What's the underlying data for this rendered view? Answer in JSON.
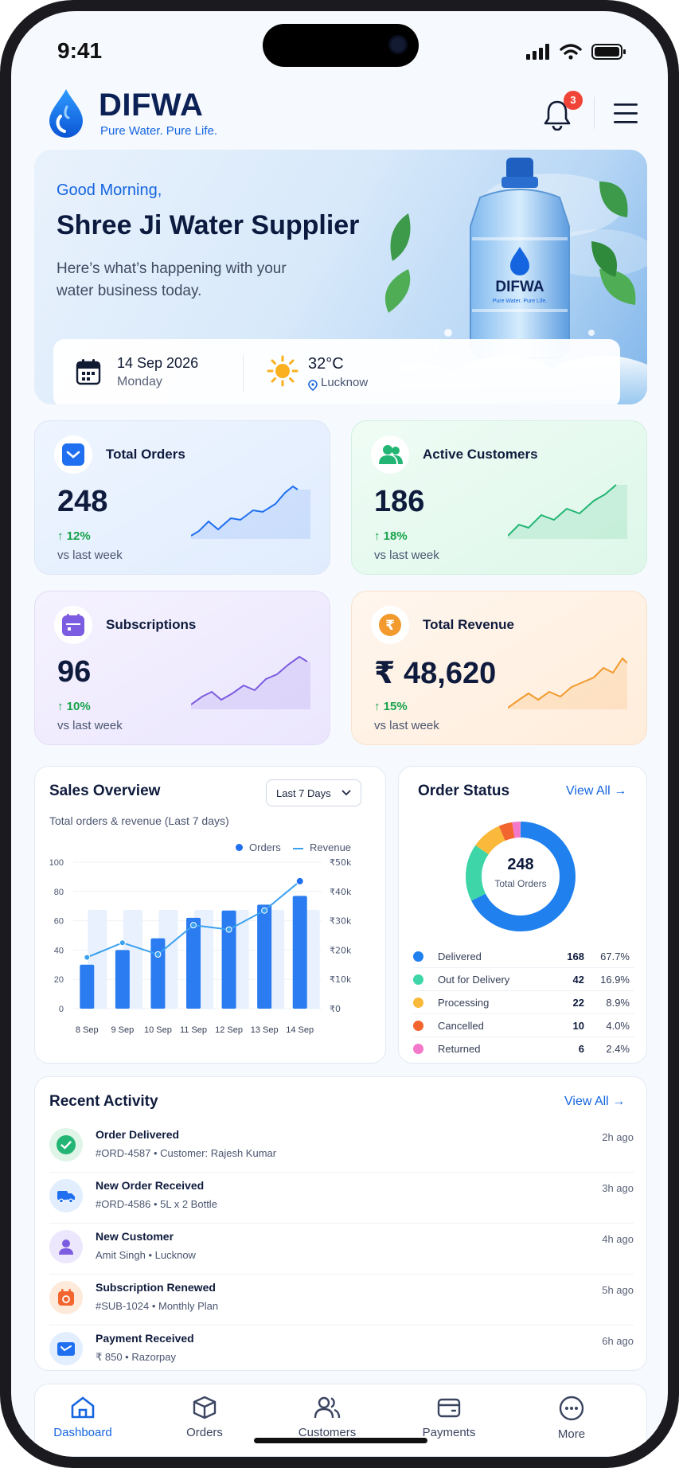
{
  "status_bar": {
    "time": "9:41"
  },
  "header": {
    "brand": "DIFWA",
    "tagline": "Pure Water. Pure Life.",
    "notification_count": "3"
  },
  "hero": {
    "greeting": "Good Morning,",
    "business_name": "Shree Ji Water Supplier",
    "subtitle": "Here’s what’s happening with your water business today.",
    "bottle_label": "DIFWA",
    "bottle_tagline": "Pure Water. Pure Life.",
    "date": "14 Sep 2026",
    "day": "Monday",
    "temperature": "32°C",
    "city": "Lucknow"
  },
  "stats": [
    {
      "title": "Total Orders",
      "value": "248",
      "change": "12%",
      "compare": "vs last week",
      "color": "#1565e0"
    },
    {
      "title": "Active Customers",
      "value": "186",
      "change": "18%",
      "compare": "vs last week",
      "color": "#22b573"
    },
    {
      "title": "Subscriptions",
      "value": "96",
      "change": "10%",
      "compare": "vs last week",
      "color": "#7c5ce0"
    },
    {
      "title": "Total Revenue",
      "value": "₹ 48,620",
      "change": "15%",
      "compare": "vs last week",
      "color": "#f29a2e"
    }
  ],
  "sales_overview": {
    "title": "Sales Overview",
    "subtitle": "Total orders & revenue (Last 7 days)",
    "range_label": "Last 7 Days",
    "legend_orders": "Orders",
    "legend_revenue": "Revenue"
  },
  "chart_data": {
    "type": "bar",
    "categories": [
      "8 Sep",
      "9 Sep",
      "10 Sep",
      "11 Sep",
      "12 Sep",
      "13 Sep",
      "14 Sep"
    ],
    "y_ticks": [
      "100",
      "80",
      "60",
      "40",
      "20",
      "0"
    ],
    "y2_ticks": [
      "₹50k",
      "₹40k",
      "₹30k",
      "₹20k",
      "₹10k",
      "₹0"
    ],
    "ylim": [
      0,
      100
    ],
    "y2lim": [
      0,
      50000
    ],
    "series": [
      {
        "name": "Orders",
        "type": "bar",
        "values": [
          30,
          40,
          48,
          62,
          67,
          71,
          77
        ]
      },
      {
        "name": "Revenue",
        "type": "line",
        "values": [
          17500,
          22500,
          18500,
          28500,
          27000,
          33500,
          43500
        ]
      }
    ],
    "grid": true,
    "legend_position": "top-right"
  },
  "order_status": {
    "title": "Order Status",
    "view_all": "View All",
    "total": "248",
    "total_label": "Total Orders",
    "items": [
      {
        "label": "Delivered",
        "count": "168",
        "percent": "67.7%",
        "share": 67.7,
        "color": "#1f80ee"
      },
      {
        "label": "Out for Delivery",
        "count": "42",
        "percent": "16.9%",
        "share": 16.9,
        "color": "#3ed6a8"
      },
      {
        "label": "Processing",
        "count": "22",
        "percent": "8.9%",
        "share": 8.9,
        "color": "#fbb93b"
      },
      {
        "label": "Cancelled",
        "count": "10",
        "percent": "4.0%",
        "share": 4.0,
        "color": "#f2652e"
      },
      {
        "label": "Returned",
        "count": "6",
        "percent": "2.4%",
        "share": 2.4,
        "color": "#f478c9"
      }
    ]
  },
  "recent_activity": {
    "title": "Recent Activity",
    "view_all": "View All",
    "items": [
      {
        "title": "Order Delivered",
        "detail": "#ORD-4587 • Customer: Rajesh Kumar",
        "time": "2h ago",
        "icon": "check-circle-icon"
      },
      {
        "title": "New Order Received",
        "detail": "#ORD-4586 • 5L x 2 Bottle",
        "time": "3h ago",
        "icon": "truck-icon"
      },
      {
        "title": "New Customer",
        "detail": "Amit Singh • Lucknow",
        "time": "4h ago",
        "icon": "user-icon"
      },
      {
        "title": "Subscription Renewed",
        "detail": "#SUB-1024 • Monthly Plan",
        "time": "5h ago",
        "icon": "calendar-icon"
      },
      {
        "title": "Payment Received",
        "detail": "₹ 850 • Razorpay",
        "time": "6h ago",
        "icon": "wallet-icon"
      }
    ]
  },
  "nav": [
    {
      "label": "Dashboard",
      "icon": "home-icon",
      "active": true
    },
    {
      "label": "Orders",
      "icon": "box-icon"
    },
    {
      "label": "Customers",
      "icon": "users-icon"
    },
    {
      "label": "Payments",
      "icon": "card-icon"
    },
    {
      "label": "More",
      "icon": "more-icon"
    }
  ]
}
